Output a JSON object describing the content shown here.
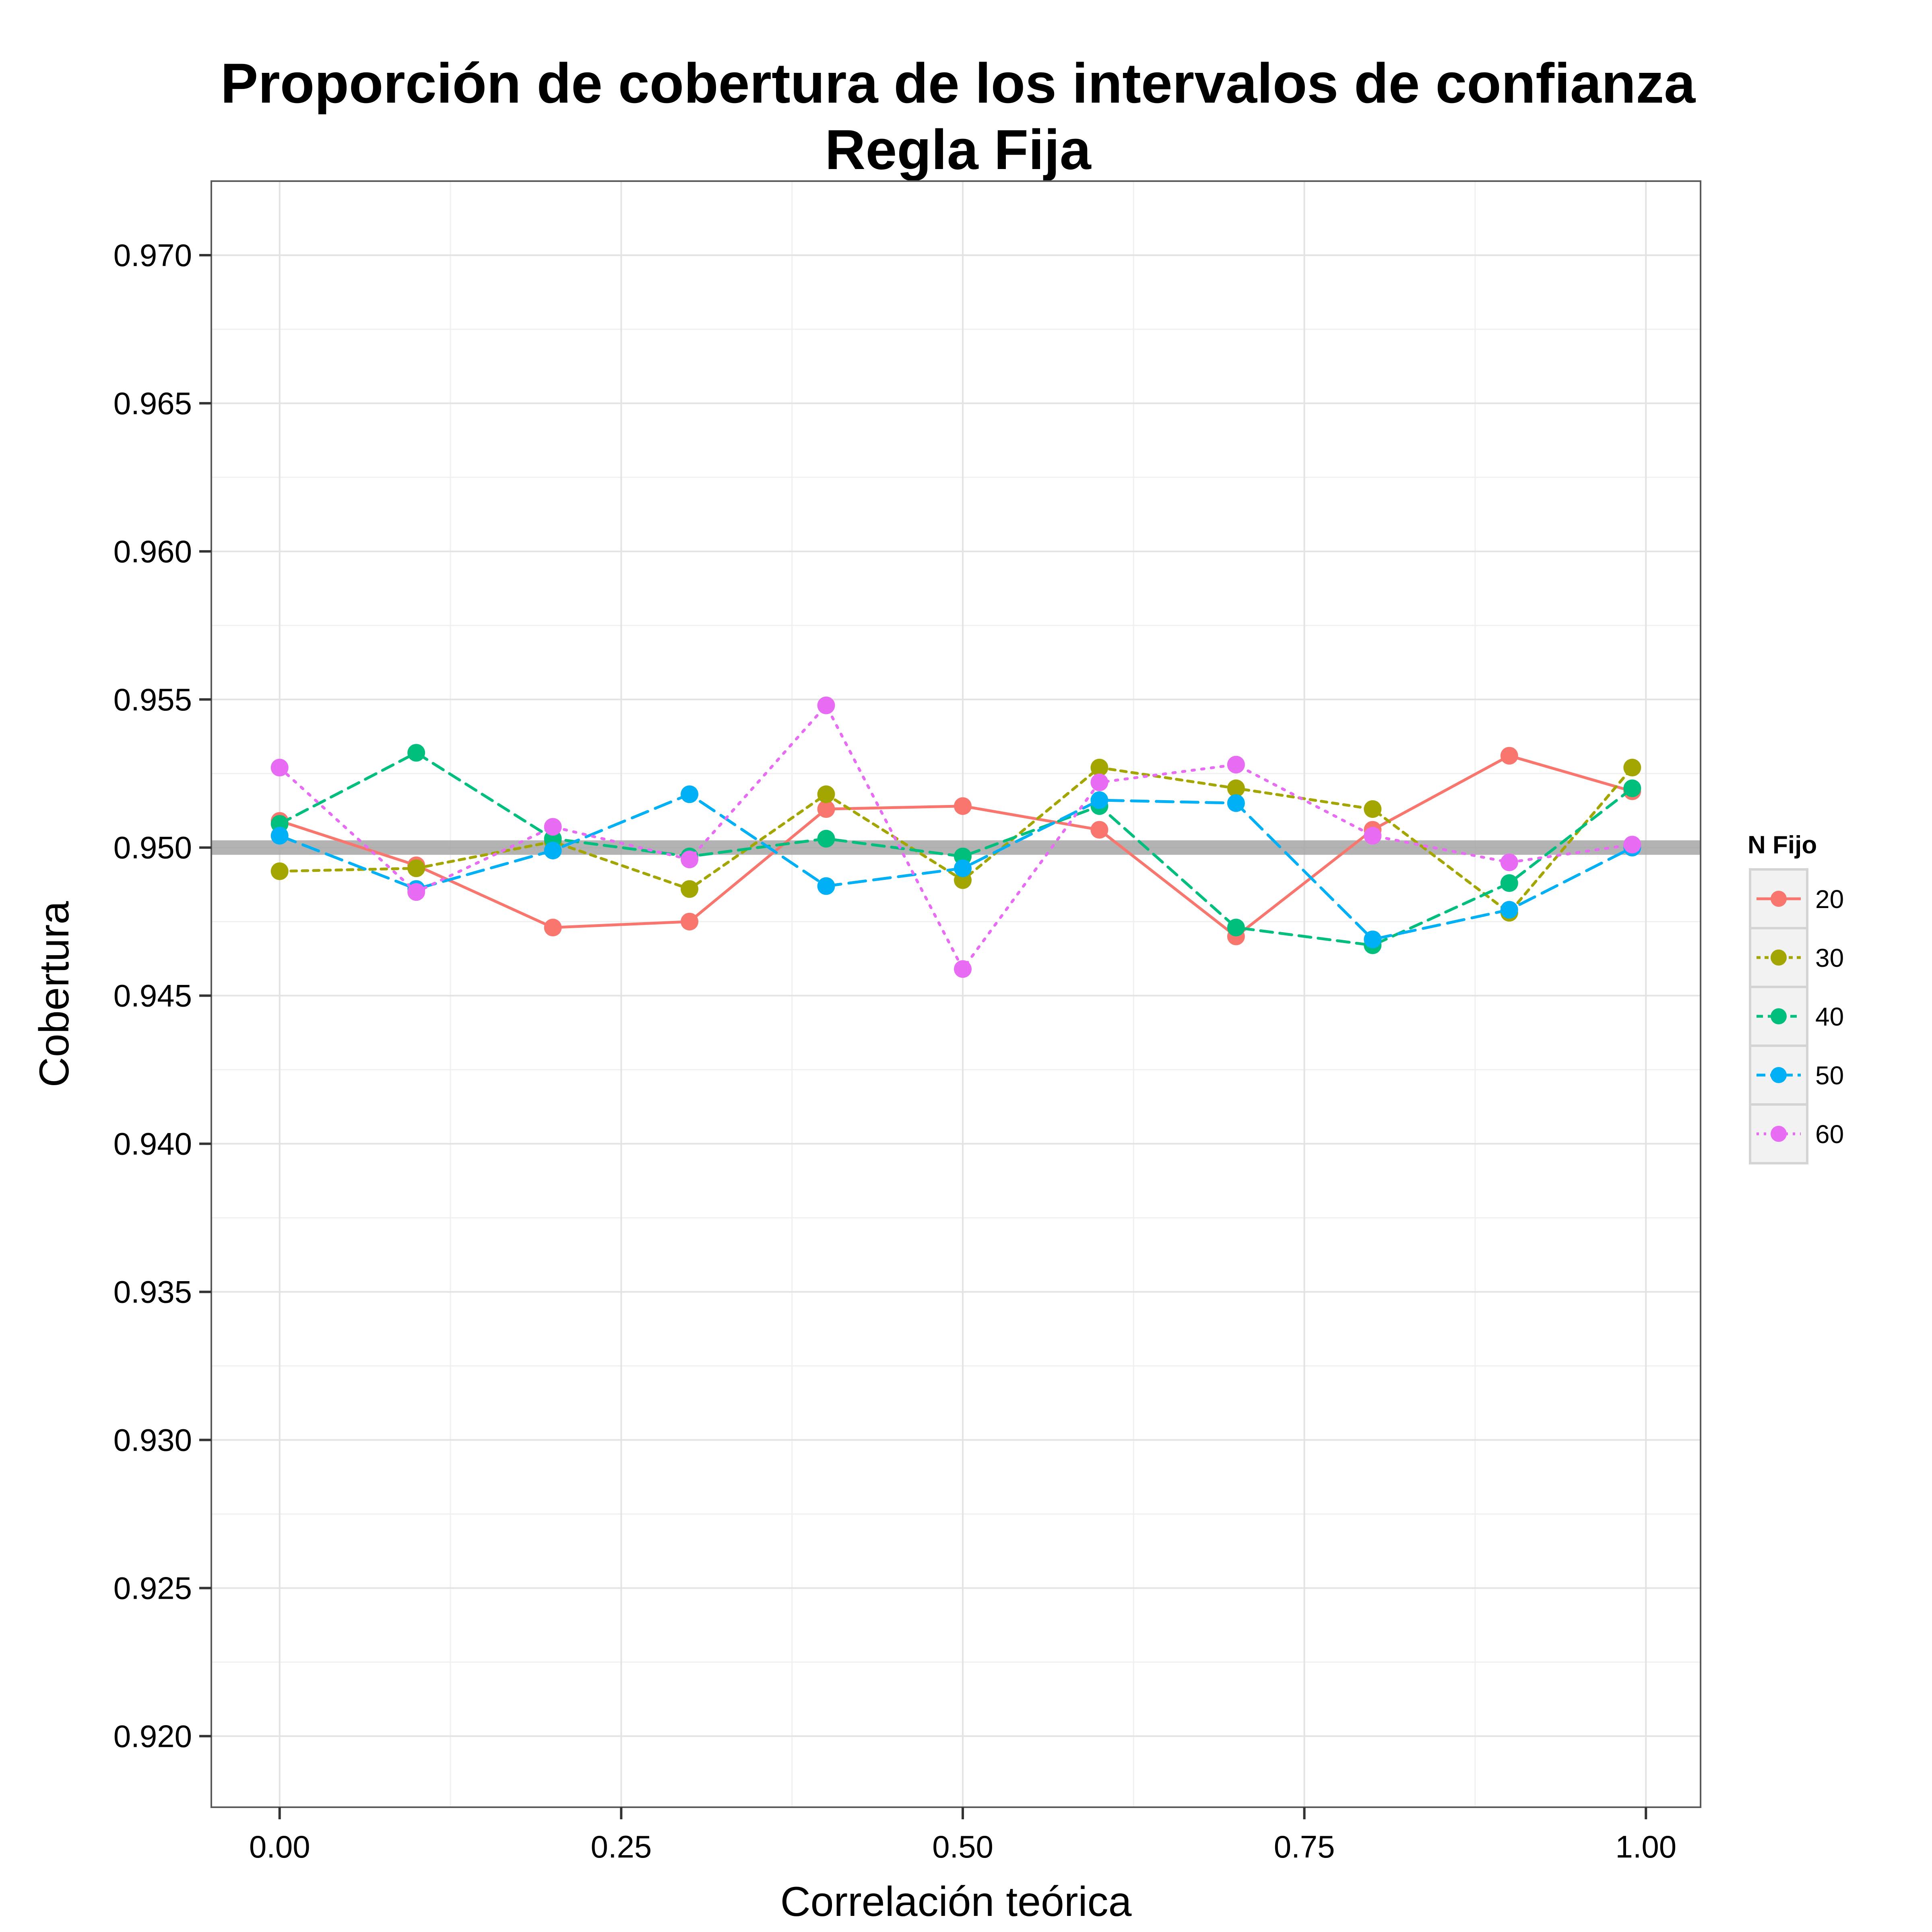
{
  "chart_data": {
    "type": "line",
    "title": "Proporción de cobertura de los intervalos de confianza",
    "subtitle": "Regla Fija",
    "xlabel": "Correlación teórica",
    "ylabel": "Cobertura",
    "xlim": [
      -0.05,
      1.04
    ],
    "ylim": [
      0.9176,
      0.9725
    ],
    "x_ticks": [
      0.0,
      0.25,
      0.5,
      0.75,
      1.0
    ],
    "x_tick_labels": [
      "0.00",
      "0.25",
      "0.50",
      "0.75",
      "1.00"
    ],
    "y_ticks": [
      0.92,
      0.925,
      0.93,
      0.935,
      0.94,
      0.945,
      0.95,
      0.955,
      0.96,
      0.965,
      0.97
    ],
    "y_tick_labels": [
      "0.920",
      "0.925",
      "0.930",
      "0.935",
      "0.940",
      "0.945",
      "0.950",
      "0.955",
      "0.960",
      "0.965",
      "0.970"
    ],
    "grid": true,
    "reference_line": {
      "y": 0.95,
      "color": "#a6a6a6"
    },
    "legend": {
      "title": "N Fijo",
      "placement": "right"
    },
    "x": [
      0.0,
      0.1,
      0.2,
      0.3,
      0.4,
      0.5,
      0.6,
      0.7,
      0.8,
      0.9,
      0.99
    ],
    "series": [
      {
        "name": "20",
        "color": "#F8766D",
        "dash": "solid",
        "values": [
          0.9509,
          0.9494,
          0.9473,
          0.9475,
          0.9513,
          0.9514,
          0.9506,
          0.947,
          0.9506,
          0.9531,
          0.9519
        ]
      },
      {
        "name": "30",
        "color": "#A3A500",
        "dash": "short-dash",
        "values": [
          0.9492,
          0.9493,
          0.9502,
          0.9486,
          0.9518,
          0.9489,
          0.9527,
          0.952,
          0.9513,
          0.9478,
          0.9527
        ]
      },
      {
        "name": "40",
        "color": "#00BF7D",
        "dash": "dash",
        "values": [
          0.9508,
          0.9532,
          0.9503,
          0.9497,
          0.9503,
          0.9497,
          0.9514,
          0.9473,
          0.9467,
          0.9488,
          0.952
        ]
      },
      {
        "name": "50",
        "color": "#00B0F6",
        "dash": "long-dash",
        "values": [
          0.9504,
          0.9486,
          0.9499,
          0.9518,
          0.9487,
          0.9493,
          0.9516,
          0.9515,
          0.9469,
          0.9479,
          0.95
        ]
      },
      {
        "name": "60",
        "color": "#E76BF3",
        "dash": "dotted",
        "values": [
          0.9527,
          0.9485,
          0.9507,
          0.9496,
          0.9548,
          0.9459,
          0.9522,
          0.9528,
          0.9504,
          0.9495,
          0.9501
        ]
      }
    ]
  }
}
